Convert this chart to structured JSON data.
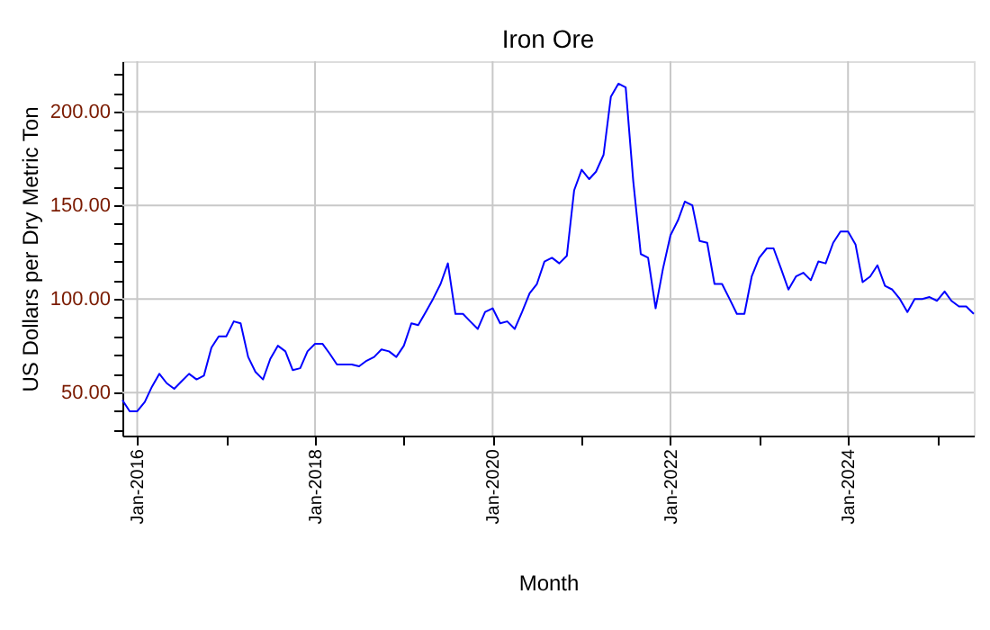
{
  "chart_data": {
    "type": "line",
    "title": "Iron Ore",
    "xlabel": "Month",
    "ylabel": "US Dollars per Dry Metric Ton",
    "x": [
      "2015-11",
      "2015-12",
      "2016-01",
      "2016-02",
      "2016-03",
      "2016-04",
      "2016-05",
      "2016-06",
      "2016-07",
      "2016-08",
      "2016-09",
      "2016-10",
      "2016-11",
      "2016-12",
      "2017-01",
      "2017-02",
      "2017-03",
      "2017-04",
      "2017-05",
      "2017-06",
      "2017-07",
      "2017-08",
      "2017-09",
      "2017-10",
      "2017-11",
      "2017-12",
      "2018-01",
      "2018-02",
      "2018-03",
      "2018-04",
      "2018-05",
      "2018-06",
      "2018-07",
      "2018-08",
      "2018-09",
      "2018-10",
      "2018-11",
      "2018-12",
      "2019-01",
      "2019-02",
      "2019-03",
      "2019-04",
      "2019-05",
      "2019-06",
      "2019-07",
      "2019-08",
      "2019-09",
      "2019-10",
      "2019-11",
      "2019-12",
      "2020-01",
      "2020-02",
      "2020-03",
      "2020-04",
      "2020-05",
      "2020-06",
      "2020-07",
      "2020-08",
      "2020-09",
      "2020-10",
      "2020-11",
      "2020-12",
      "2021-01",
      "2021-02",
      "2021-03",
      "2021-04",
      "2021-05",
      "2021-06",
      "2021-07",
      "2021-08",
      "2021-09",
      "2021-10",
      "2021-11",
      "2021-12",
      "2022-01",
      "2022-02",
      "2022-03",
      "2022-04",
      "2022-05",
      "2022-06",
      "2022-07",
      "2022-08",
      "2022-09",
      "2022-10",
      "2022-11",
      "2022-12",
      "2023-01",
      "2023-02",
      "2023-03",
      "2023-04",
      "2023-05",
      "2023-06",
      "2023-07",
      "2023-08",
      "2023-09",
      "2023-10",
      "2023-11",
      "2023-12",
      "2024-01",
      "2024-02",
      "2024-03",
      "2024-04",
      "2024-05",
      "2024-06",
      "2024-07",
      "2024-08",
      "2024-09",
      "2024-10",
      "2024-11",
      "2024-12",
      "2025-01",
      "2025-02",
      "2025-03",
      "2025-04",
      "2025-05",
      "2025-06"
    ],
    "series": [
      {
        "color": "#0000ff",
        "values": [
          46,
          40,
          40,
          45,
          53,
          60,
          55,
          52,
          56,
          60,
          57,
          59,
          74,
          80,
          80,
          88,
          87,
          69,
          61,
          57,
          68,
          75,
          72,
          62,
          63,
          72,
          76,
          76,
          71,
          65,
          65,
          65,
          64,
          67,
          69,
          73,
          72,
          69,
          75,
          87,
          86,
          93,
          100,
          108,
          119,
          92,
          92,
          88,
          84,
          93,
          95,
          87,
          88,
          84,
          93,
          103,
          108,
          120,
          122,
          119,
          123,
          158,
          169,
          164,
          168,
          177,
          208,
          215,
          213,
          163,
          124,
          122,
          95,
          116,
          134,
          142,
          152,
          150,
          131,
          130,
          108,
          108,
          100,
          92,
          92,
          112,
          122,
          127,
          127,
          116,
          105,
          112,
          114,
          110,
          120,
          119,
          130,
          136,
          136,
          129,
          109,
          112,
          118,
          107,
          105,
          100,
          93,
          100,
          100,
          101,
          99,
          104,
          99,
          96,
          96,
          92
        ]
      }
    ],
    "xlim": [
      "2015-11",
      "2025-06"
    ],
    "xticks": [
      {
        "value": "2016-01",
        "label": "Jan-2016"
      },
      {
        "value": "2017-01",
        "label": null
      },
      {
        "value": "2018-01",
        "label": "Jan-2018"
      },
      {
        "value": "2019-01",
        "label": null
      },
      {
        "value": "2020-01",
        "label": "Jan-2020"
      },
      {
        "value": "2021-01",
        "label": null
      },
      {
        "value": "2022-01",
        "label": "Jan-2022"
      },
      {
        "value": "2023-01",
        "label": null
      },
      {
        "value": "2024-01",
        "label": "Jan-2024"
      },
      {
        "value": "2025-01",
        "label": null
      }
    ],
    "ylim": [
      27,
      227
    ],
    "yticks": [
      {
        "value": 30,
        "label": null
      },
      {
        "value": 40,
        "label": null
      },
      {
        "value": 50,
        "label": "50.00"
      },
      {
        "value": 60,
        "label": null
      },
      {
        "value": 70,
        "label": null
      },
      {
        "value": 80,
        "label": null
      },
      {
        "value": 90,
        "label": null
      },
      {
        "value": 100,
        "label": "100.00"
      },
      {
        "value": 110,
        "label": null
      },
      {
        "value": 120,
        "label": null
      },
      {
        "value": 130,
        "label": null
      },
      {
        "value": 140,
        "label": null
      },
      {
        "value": 150,
        "label": "150.00"
      },
      {
        "value": 160,
        "label": null
      },
      {
        "value": 170,
        "label": null
      },
      {
        "value": 180,
        "label": null
      },
      {
        "value": 190,
        "label": null
      },
      {
        "value": 200,
        "label": "200.00"
      },
      {
        "value": 210,
        "label": null
      },
      {
        "value": 220,
        "label": null
      }
    ],
    "grid": true,
    "legend": false,
    "marker": "none",
    "line_style": "solid"
  }
}
